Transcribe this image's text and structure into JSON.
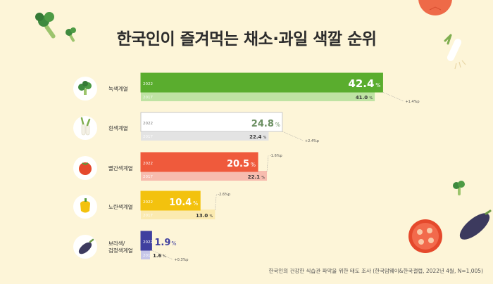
{
  "title": "한국인이 즐겨먹는 채소·과일 색깔 순위",
  "source": "한국인의 건강한 식습관 파악을 위한 태도 조사 (한국암웨이&한국갤럽, 2022년 4월, N=1,005)",
  "chart_data": {
    "type": "bar",
    "title": "한국인이 즐겨먹는 채소·과일 색깔 순위",
    "unit": "%",
    "series_labels": [
      "2022",
      "2017"
    ],
    "categories": [
      {
        "label": "녹색계열",
        "icon": "broccoli-icon",
        "v2022": 42.4,
        "v2017": 41.0,
        "change": "+1.4%p",
        "c2022": "#5aad2e",
        "c2017": "#bfe3a3",
        "text2022": "#ffffff",
        "border": "#5aad2e"
      },
      {
        "label": "흰색계열",
        "icon": "green-onion-icon",
        "v2022": 24.8,
        "v2017": 22.4,
        "change": "+2.4%p",
        "c2022": "#ffffff",
        "c2017": "#e3e3e3",
        "text2022": "#6b8f62",
        "border": "#c8c8c8"
      },
      {
        "label": "빨간색계열",
        "icon": "tomato-icon",
        "v2022": 20.5,
        "v2017": 22.1,
        "change": "-1.6%p",
        "c2022": "#ef5a3c",
        "c2017": "#f7bcae",
        "text2022": "#ffffff",
        "border": "#ef5a3c"
      },
      {
        "label": "노란색계열",
        "icon": "bell-pepper-icon",
        "v2022": 10.4,
        "v2017": 13.0,
        "change": "-2.6%p",
        "c2022": "#f3c20e",
        "c2017": "#fbeab0",
        "text2022": "#ffffff",
        "border": "#f3c20e"
      },
      {
        "label": "보라색/\n검정색계열",
        "icon": "eggplant-icon",
        "v2022": 1.9,
        "v2017": 1.6,
        "change": "+0.3%p",
        "c2022": "#3f3f9f",
        "c2017": "#c6c6e8",
        "text2022": "#3f3f9f",
        "border": "#3f3f9f"
      }
    ]
  }
}
